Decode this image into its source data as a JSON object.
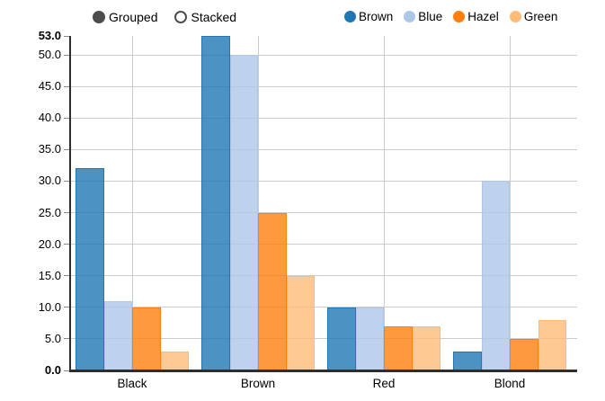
{
  "controls": {
    "options": [
      {
        "label": "Grouped",
        "selected": true
      },
      {
        "label": "Stacked",
        "selected": false
      }
    ]
  },
  "legend": {
    "items": [
      {
        "label": "Brown",
        "color": "#1f77b4"
      },
      {
        "label": "Blue",
        "color": "#aec7e8"
      },
      {
        "label": "Hazel",
        "color": "#ff7f0e"
      },
      {
        "label": "Green",
        "color": "#ffbb78"
      }
    ]
  },
  "chart_data": {
    "type": "bar",
    "mode": "grouped",
    "title": "",
    "xlabel": "",
    "ylabel": "",
    "categories": [
      "Black",
      "Brown",
      "Red",
      "Blond"
    ],
    "series": [
      {
        "name": "Brown",
        "color": "#1f77b4",
        "values": [
          32,
          53,
          10,
          3
        ]
      },
      {
        "name": "Blue",
        "color": "#aec7e8",
        "values": [
          11,
          50,
          10,
          30
        ]
      },
      {
        "name": "Hazel",
        "color": "#ff7f0e",
        "values": [
          10,
          25,
          7,
          5
        ]
      },
      {
        "name": "Green",
        "color": "#ffbb78",
        "values": [
          3,
          15,
          7,
          8
        ]
      }
    ],
    "ylim": [
      0,
      53
    ],
    "y_ticks": [
      0,
      5,
      10,
      15,
      20,
      25,
      30,
      35,
      40,
      45,
      50,
      53
    ],
    "y_tick_format": "one_decimal",
    "grid": true,
    "legend_position": "top-right",
    "bar_fill_opacity": 0.8,
    "colors": {
      "axis": "#2e2e2e",
      "gridline": "#cccccc",
      "tick_text": "#000000"
    }
  }
}
